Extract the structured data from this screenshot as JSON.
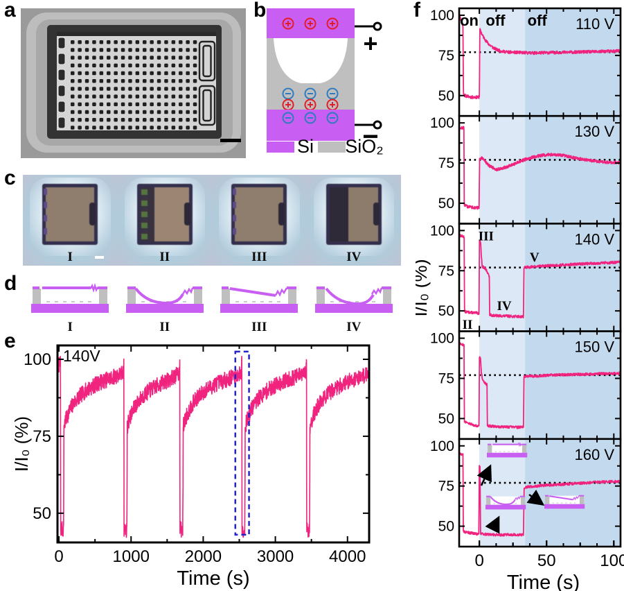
{
  "panels": {
    "a": "a",
    "b": "b",
    "c": "c",
    "d": "d",
    "e": "e",
    "f": "f"
  },
  "colors": {
    "trace": "#F0237F",
    "purple": "#C95FF2",
    "purple_light": "#D87FF5",
    "gray": "#BFBFBF",
    "light_blue": "#DCE8F6",
    "dark_blue": "#C3D9EE",
    "box_blue": "#2323CC",
    "charge_red": "#E31D24",
    "charge_blue": "#2F7BC0"
  },
  "panel_b": {
    "plus": "+",
    "minus": "−",
    "legend": [
      {
        "label": "Si"
      },
      {
        "label": "SiO₂"
      }
    ]
  },
  "panel_c": {
    "labels": [
      "I",
      "II",
      "III",
      "IV"
    ]
  },
  "panel_d": {
    "labels": [
      "I",
      "II",
      "III",
      "IV"
    ]
  },
  "chart_data": [
    {
      "id": "e",
      "type": "line",
      "annotation": "140V",
      "xlabel": "Time (s)",
      "ylabel": "I/I₀ (%)",
      "xlim": [
        -20,
        4300
      ],
      "ylim": [
        40.5,
        104.5
      ],
      "xticks": [
        0,
        1000,
        2000,
        3000,
        4000
      ],
      "yticks": [
        50,
        75,
        100
      ],
      "noise": 2.6,
      "seed": 7,
      "highlight_box": {
        "x": [
          2445,
          2635
        ],
        "y": [
          43,
          102.5
        ]
      },
      "series": [
        {
          "name": "I/I₀",
          "keypoints": [
            [
              -20,
              99
            ],
            [
              5,
              98
            ],
            [
              17,
              98
            ],
            [
              21,
              101
            ],
            [
              23.5,
              70
            ],
            [
              25,
              45
            ],
            [
              63,
              44.5
            ],
            [
              67,
              60
            ],
            [
              69,
              78
            ],
            [
              83,
              79.5
            ],
            [
              123,
              82
            ],
            [
              183,
              85
            ],
            [
              263,
              87.5
            ],
            [
              383,
              90
            ],
            [
              523,
              92
            ],
            [
              673,
              93.5
            ],
            [
              893,
              95.5
            ],
            [
              896,
              97
            ],
            [
              900,
              101
            ],
            [
              901.5,
              70
            ],
            [
              903,
              45
            ],
            [
              941,
              44.5
            ],
            [
              945,
              60
            ],
            [
              947,
              78
            ],
            [
              961,
              79.5
            ],
            [
              1001,
              82
            ],
            [
              1061,
              85
            ],
            [
              1141,
              87.5
            ],
            [
              1261,
              90
            ],
            [
              1401,
              92
            ],
            [
              1541,
              93.5
            ],
            [
              1668,
              95.5
            ],
            [
              1671,
              97
            ],
            [
              1675,
              101
            ],
            [
              1676.5,
              70
            ],
            [
              1678,
              45
            ],
            [
              1716,
              44.5
            ],
            [
              1720,
              60
            ],
            [
              1722,
              78
            ],
            [
              1736,
              79.5
            ],
            [
              1776,
              82
            ],
            [
              1836,
              85
            ],
            [
              1916,
              87.5
            ],
            [
              2036,
              90
            ],
            [
              2176,
              92
            ],
            [
              2326,
              93.5
            ],
            [
              2528,
              95.5
            ],
            [
              2531,
              97
            ],
            [
              2535,
              101
            ],
            [
              2536.5,
              70
            ],
            [
              2538,
              45
            ],
            [
              2576,
              44.5
            ],
            [
              2580,
              60
            ],
            [
              2582,
              78
            ],
            [
              2596,
              79.5
            ],
            [
              2636,
              82
            ],
            [
              2696,
              85
            ],
            [
              2776,
              87.5
            ],
            [
              2896,
              90
            ],
            [
              3036,
              92
            ],
            [
              3186,
              93.5
            ],
            [
              3425,
              95.5
            ],
            [
              3428,
              97
            ],
            [
              3432,
              101
            ],
            [
              3433.5,
              70
            ],
            [
              3435,
              45
            ],
            [
              3473,
              44.5
            ],
            [
              3477,
              60
            ],
            [
              3479,
              78
            ],
            [
              3493,
              79.5
            ],
            [
              3533,
              82
            ],
            [
              3593,
              85
            ],
            [
              3673,
              87.5
            ],
            [
              3793,
              90
            ],
            [
              3933,
              92
            ],
            [
              4083,
              93.5
            ],
            [
              4300,
              95.5
            ]
          ]
        }
      ]
    },
    {
      "id": "f1",
      "type": "line",
      "voltage": "110 V",
      "dotted_y": 77,
      "xlim": [
        -15,
        105
      ],
      "ylim": [
        37.3,
        104.3
      ],
      "yticks": [
        100,
        75,
        50
      ],
      "regions": {
        "off1": [
          0,
          34
        ],
        "off2": [
          34,
          105
        ]
      },
      "noise": 0.9,
      "seed": 11,
      "annotations": [
        {
          "text": "on",
          "x": -7.5,
          "y": 96.5,
          "bold": true
        },
        {
          "text": "off",
          "x": 12,
          "y": 96.5,
          "bold": true
        },
        {
          "text": "off",
          "x": 43,
          "y": 96.5,
          "bold": true
        }
      ],
      "series": [
        {
          "keypoints": [
            [
              -15,
              100
            ],
            [
              -14,
              98
            ],
            [
              -13,
              95
            ],
            [
              -12.2,
              93
            ],
            [
              -11.8,
              52
            ],
            [
              -11,
              50
            ],
            [
              -6,
              49
            ],
            [
              -0.3,
              49
            ],
            [
              0,
              50
            ],
            [
              0.4,
              91
            ],
            [
              1.5,
              89
            ],
            [
              3,
              86.5
            ],
            [
              5,
              84
            ],
            [
              7,
              82
            ],
            [
              10,
              80
            ],
            [
              13,
              78.5
            ],
            [
              17,
              77.5
            ],
            [
              22,
              77
            ],
            [
              30,
              76.8
            ],
            [
              40,
              76.5
            ],
            [
              55,
              76.8
            ],
            [
              70,
              77
            ],
            [
              85,
              77.3
            ],
            [
              105,
              77.8
            ]
          ]
        }
      ]
    },
    {
      "id": "f2",
      "type": "line",
      "voltage": "130 V",
      "dotted_y": 77,
      "xlim": [
        -15,
        105
      ],
      "ylim": [
        37.3,
        104.3
      ],
      "yticks": [
        100,
        75,
        50
      ],
      "regions": {
        "off1": [
          0,
          34
        ],
        "off2": [
          34,
          105
        ]
      },
      "noise": 0.9,
      "seed": 12,
      "annotations": [],
      "series": [
        {
          "keypoints": [
            [
              -15,
              96.5
            ],
            [
              -11.5,
              97
            ],
            [
              -11.2,
              49
            ],
            [
              -9,
              48
            ],
            [
              -5,
              47.5
            ],
            [
              -0.2,
              47
            ],
            [
              0.2,
              78
            ],
            [
              2,
              78
            ],
            [
              4,
              76.5
            ],
            [
              7,
              73.5
            ],
            [
              10,
              72
            ],
            [
              13,
              71
            ],
            [
              16,
              71.5
            ],
            [
              20,
              72.5
            ],
            [
              25,
              74
            ],
            [
              30,
              76
            ],
            [
              35,
              77.5
            ],
            [
              40,
              78.7
            ],
            [
              46,
              79.8
            ],
            [
              52,
              80.3
            ],
            [
              58,
              80.2
            ],
            [
              64,
              79.5
            ],
            [
              72,
              78
            ],
            [
              80,
              77
            ],
            [
              88,
              76
            ],
            [
              96,
              75.5
            ],
            [
              105,
              75.2
            ]
          ]
        }
      ]
    },
    {
      "id": "f3",
      "type": "line",
      "voltage": "140 V",
      "dotted_y": 77,
      "xlim": [
        -15,
        105
      ],
      "ylim": [
        37.3,
        104.3
      ],
      "yticks": [
        100,
        75,
        50
      ],
      "regions": {
        "off1": [
          0,
          34
        ],
        "off2": [
          34,
          105
        ]
      },
      "noise": 0.8,
      "seed": 13,
      "annotations": [
        {
          "text": "III",
          "x": 5,
          "y": 97,
          "serif": true
        },
        {
          "text": "II",
          "x": -8.8,
          "y": 41.9,
          "serif": true
        },
        {
          "text": "IV",
          "x": 18.5,
          "y": 53.5,
          "serif": true
        },
        {
          "text": "V",
          "x": 41,
          "y": 83.8,
          "serif": true
        }
      ],
      "series": [
        {
          "keypoints": [
            [
              -15,
              97
            ],
            [
              -13,
              96.5
            ],
            [
              -11.3,
              96
            ],
            [
              -11,
              49.5
            ],
            [
              -6,
              49
            ],
            [
              -0.3,
              48.5
            ],
            [
              0.1,
              93.5
            ],
            [
              0.9,
              93
            ],
            [
              1.6,
              83
            ],
            [
              2.2,
              77.5
            ],
            [
              3.5,
              77
            ],
            [
              5,
              75.5
            ],
            [
              6.5,
              73.5
            ],
            [
              7.4,
              71
            ],
            [
              7.7,
              47.5
            ],
            [
              12,
              47
            ],
            [
              20,
              46.8
            ],
            [
              28,
              46.5
            ],
            [
              32.8,
              46.5
            ],
            [
              33.2,
              77
            ],
            [
              36,
              77.2
            ],
            [
              45,
              77.8
            ],
            [
              60,
              78.5
            ],
            [
              75,
              79.2
            ],
            [
              90,
              79.8
            ],
            [
              105,
              80.3
            ]
          ]
        }
      ]
    },
    {
      "id": "f4",
      "type": "line",
      "voltage": "150 V",
      "dotted_y": 77,
      "xlim": [
        -15,
        105
      ],
      "ylim": [
        37.3,
        104.3
      ],
      "yticks": [
        100,
        75,
        50
      ],
      "regions": {
        "off1": [
          0,
          34
        ],
        "off2": [
          34,
          105
        ]
      },
      "noise": 0.8,
      "seed": 14,
      "annotations": [],
      "series": [
        {
          "keypoints": [
            [
              -15,
              97
            ],
            [
              -12,
              96
            ],
            [
              -11.4,
              95.5
            ],
            [
              -11.1,
              48
            ],
            [
              -8,
              47
            ],
            [
              -4,
              46
            ],
            [
              -0.3,
              45.2
            ],
            [
              0.1,
              88
            ],
            [
              0.8,
              88
            ],
            [
              1.5,
              79
            ],
            [
              2.2,
              75
            ],
            [
              3.5,
              72.5
            ],
            [
              5,
              71.5
            ],
            [
              5.7,
              71
            ],
            [
              6,
              45.5
            ],
            [
              12,
              45
            ],
            [
              20,
              44.8
            ],
            [
              28,
              44.6
            ],
            [
              32.8,
              44.8
            ],
            [
              33.2,
              76
            ],
            [
              38,
              76.3
            ],
            [
              48,
              76.8
            ],
            [
              60,
              77.2
            ],
            [
              78,
              77.6
            ],
            [
              105,
              78.2
            ]
          ]
        }
      ]
    },
    {
      "id": "f5",
      "type": "line",
      "voltage": "160 V",
      "dotted_y": 77,
      "xlim": [
        -15,
        105
      ],
      "ylim": [
        37.3,
        104.3
      ],
      "yticks": [
        100,
        75,
        50
      ],
      "regions": {
        "off1": [
          0,
          34
        ],
        "off2": [
          34,
          105
        ]
      },
      "noise": 0.8,
      "seed": 15,
      "annotations": [],
      "xticks": [
        0,
        50,
        100
      ],
      "xlabel": "Time (s)",
      "ylabel": "I/I₀ (%)",
      "insets": [
        {
          "variant": "flat"
        },
        {
          "variant": "bowed"
        },
        {
          "variant": "tilted"
        }
      ],
      "series": [
        {
          "keypoints": [
            [
              -15,
              95
            ],
            [
              -12.2,
              95
            ],
            [
              -11.9,
              46.5
            ],
            [
              -8,
              46
            ],
            [
              -4,
              45.5
            ],
            [
              -0.4,
              45
            ],
            [
              0,
              87
            ],
            [
              0.5,
              87
            ],
            [
              0.9,
              45.5
            ],
            [
              6,
              44.8
            ],
            [
              14,
              44.6
            ],
            [
              22,
              44.8
            ],
            [
              30,
              44.6
            ],
            [
              32.8,
              44.8
            ],
            [
              33.3,
              73.5
            ],
            [
              36,
              74.5
            ],
            [
              42,
              75
            ],
            [
              50,
              75.5
            ],
            [
              60,
              76
            ],
            [
              72,
              76.6
            ],
            [
              85,
              77.3
            ],
            [
              105,
              78
            ]
          ]
        }
      ]
    }
  ]
}
